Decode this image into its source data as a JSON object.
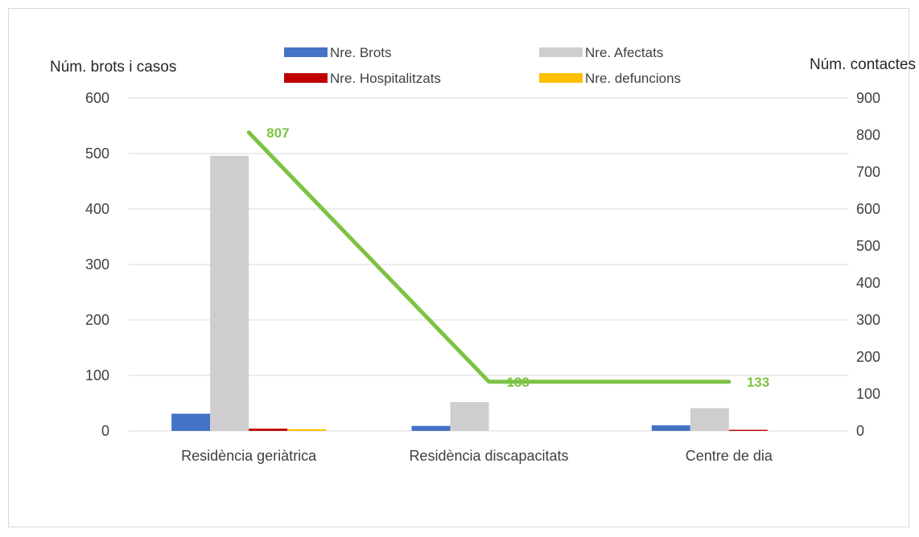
{
  "chart_data": {
    "type": "bar",
    "y_left_label": "Núm. brots i casos",
    "y_right_label": "Núm. contactes",
    "categories": [
      "Residència geriàtrica",
      "Residència discapacitats",
      "Centre de dia"
    ],
    "ylim_left": [
      0,
      600
    ],
    "ylim_right": [
      0,
      900
    ],
    "yticks_left": [
      0,
      100,
      200,
      300,
      400,
      500,
      600
    ],
    "yticks_right": [
      0,
      100,
      200,
      300,
      400,
      500,
      600,
      700,
      800,
      900
    ],
    "grid": true,
    "legend_position": "top",
    "series": [
      {
        "name": "Nre. Brots",
        "color": "#4472c4",
        "axis": "left",
        "kind": "bar",
        "values": [
          31,
          9,
          10
        ]
      },
      {
        "name": "Nre. Afectats",
        "color": "#cfcdcf",
        "axis": "left",
        "kind": "bar",
        "values": [
          496,
          52,
          41
        ]
      },
      {
        "name": "Nre. Hospitalitzats",
        "color": "#c00000",
        "axis": "left",
        "kind": "bar",
        "values": [
          4,
          0,
          2
        ]
      },
      {
        "name": "Nre. defuncions",
        "color": "#ffc000",
        "axis": "left",
        "kind": "bar",
        "values": [
          3,
          0,
          0
        ]
      },
      {
        "name": "",
        "color": "#7dc243",
        "axis": "right",
        "kind": "line",
        "values": [
          807,
          133,
          133
        ],
        "labels": [
          "807",
          "133",
          "133"
        ]
      }
    ]
  }
}
